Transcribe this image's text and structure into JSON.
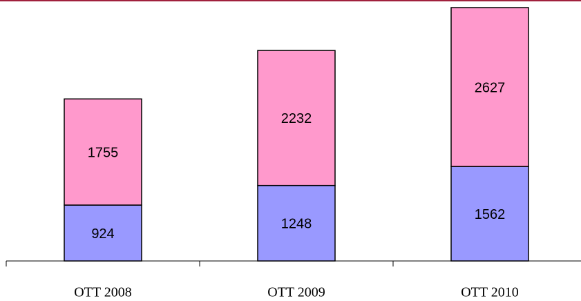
{
  "chart_data": {
    "type": "stacked-bar",
    "categories": [
      "OTT 2008",
      "OTT 2009",
      "OTT 2010"
    ],
    "series": [
      {
        "color": "#9999ff",
        "values": [
          924,
          1248,
          1562
        ]
      },
      {
        "color": "#ff99cc",
        "values": [
          1755,
          2232,
          2627
        ]
      }
    ]
  }
}
